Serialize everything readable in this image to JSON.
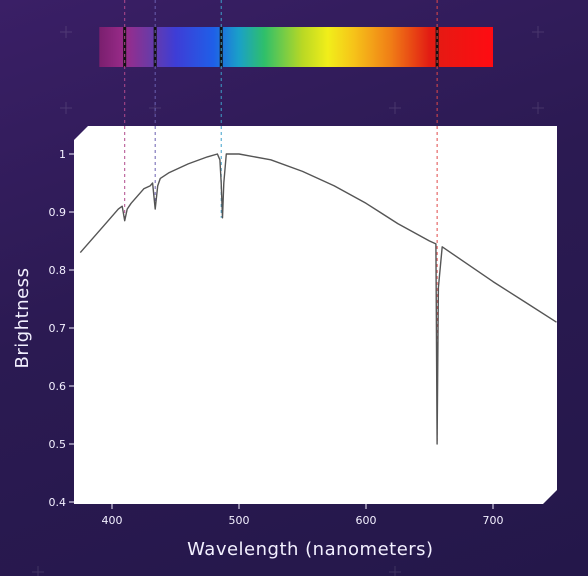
{
  "chart_data": {
    "type": "line",
    "title": "",
    "xlabel": "Wavelength (nanometers)",
    "ylabel": "Brightness",
    "xlim": [
      375,
      750
    ],
    "ylim": [
      0.4,
      1.05
    ],
    "grid": false,
    "x_ticks": [
      400,
      500,
      600,
      700
    ],
    "y_ticks": [
      0.4,
      0.5,
      0.6,
      0.7,
      0.8,
      0.9,
      1
    ],
    "x_tick_labels": [
      "400",
      "500",
      "600",
      "700"
    ],
    "y_tick_labels": [
      "0.4",
      "0.5",
      "0.6",
      "0.7",
      "0.8",
      "0.9",
      "1"
    ],
    "series": [
      {
        "x": [
          375,
          395,
          405,
          408,
          410,
          412,
          415,
          425,
          430,
          432,
          434,
          436,
          438,
          445,
          460,
          475,
          483,
          485,
          486,
          487,
          488,
          490,
          492,
          500,
          525,
          550,
          575,
          600,
          625,
          650,
          655,
          656,
          657,
          660,
          680,
          700,
          725,
          750
        ],
        "y": [
          0.83,
          0.88,
          0.905,
          0.91,
          0.885,
          0.905,
          0.915,
          0.94,
          0.945,
          0.95,
          0.905,
          0.945,
          0.958,
          0.968,
          0.983,
          0.995,
          1.0,
          0.99,
          0.95,
          0.89,
          0.95,
          1.0,
          1.0,
          1.0,
          0.99,
          0.97,
          0.945,
          0.915,
          0.88,
          0.85,
          0.845,
          0.5,
          0.77,
          0.84,
          0.81,
          0.78,
          0.745,
          0.71
        ],
        "color": "#555555"
      }
    ],
    "absorption_lines": [
      {
        "wavelength": 410,
        "color": "#b04a8c"
      },
      {
        "wavelength": 434,
        "color": "#6a5fb0"
      },
      {
        "wavelength": 486,
        "color": "#3fa0c8"
      },
      {
        "wavelength": 656,
        "color": "#e04a4a"
      }
    ],
    "spectrum_bar": {
      "range": [
        390,
        700
      ],
      "stops": [
        {
          "wavelength": 390,
          "color": "#7a1f6e"
        },
        {
          "wavelength": 410,
          "color": "#9a2b8a"
        },
        {
          "wavelength": 430,
          "color": "#6b3aa6"
        },
        {
          "wavelength": 450,
          "color": "#3e3dd6"
        },
        {
          "wavelength": 480,
          "color": "#1f5fe8"
        },
        {
          "wavelength": 500,
          "color": "#1aa0c8"
        },
        {
          "wavelength": 520,
          "color": "#2fbf6a"
        },
        {
          "wavelength": 550,
          "color": "#b9d824"
        },
        {
          "wavelength": 570,
          "color": "#f1ee1a"
        },
        {
          "wavelength": 590,
          "color": "#f6c419"
        },
        {
          "wavelength": 620,
          "color": "#f07c16"
        },
        {
          "wavelength": 650,
          "color": "#e21c13"
        },
        {
          "wavelength": 700,
          "color": "#ff0b12"
        }
      ],
      "dark_lines": [
        410,
        434,
        486,
        656
      ]
    },
    "colors": {
      "background_top": "#3a1f66",
      "background_bottom": "#24174a",
      "plot_background": "#ffffff",
      "axis_text": "#f3f0ff",
      "line": "#555555"
    }
  }
}
